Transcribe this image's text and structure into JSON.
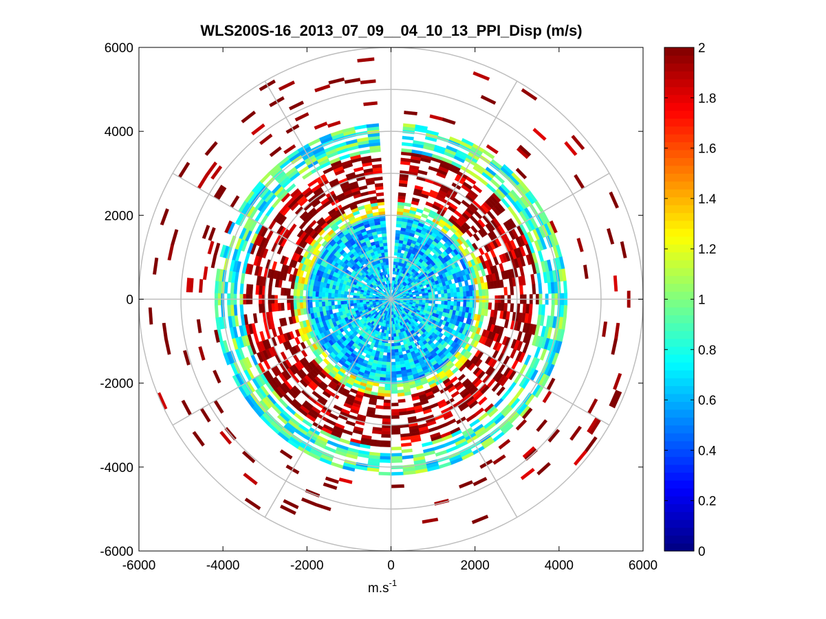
{
  "chart_data": {
    "type": "heatmap",
    "subtype": "polar-ppi",
    "title": "WLS200S-16_2013_07_09__04_10_13_PPI_Disp (m/s)",
    "xlabel": "m.s",
    "xlabel_sup": "-1",
    "ylabel": "",
    "xlim": [
      -6000,
      6000
    ],
    "ylim": [
      -6000,
      6000
    ],
    "xticks": [
      -6000,
      -4000,
      -2000,
      0,
      2000,
      4000,
      6000
    ],
    "yticks": [
      -6000,
      -4000,
      -2000,
      0,
      2000,
      4000,
      6000
    ],
    "xtick_labels": [
      "-6000",
      "-4000",
      "-2000",
      "0",
      "2000",
      "4000",
      "6000"
    ],
    "ytick_labels": [
      "-6000",
      "-4000",
      "-2000",
      "0",
      "2000",
      "4000",
      "6000"
    ],
    "polar_grid_radii": [
      1000,
      2000,
      3000,
      4000,
      5000,
      6000
    ],
    "polar_grid_spoke_angles_deg": [
      0,
      30,
      60,
      90,
      120,
      150,
      180,
      210,
      240,
      270,
      300,
      330
    ],
    "colorbar": {
      "colormap": "jet",
      "clim": [
        0,
        2
      ],
      "ticks": [
        0,
        0.2,
        0.4,
        0.6,
        0.8,
        1,
        1.2,
        1.4,
        1.6,
        1.8,
        2
      ],
      "tick_labels": [
        "0",
        "0.2",
        "0.4",
        "0.6",
        "0.8",
        "1",
        "1.2",
        "1.4",
        "1.6",
        "1.8",
        "2"
      ]
    },
    "data_description_zones": [
      {
        "range_m": [
          0,
          2000
        ],
        "typical_value": 0.65,
        "spread": 0.25
      },
      {
        "range_m": [
          2000,
          2300
        ],
        "typical_value": 1.1,
        "spread": 0.3
      },
      {
        "range_m": [
          2300,
          3500
        ],
        "typical_value": 2.0,
        "spread": 0.3
      },
      {
        "range_m": [
          3500,
          4200
        ],
        "typical_value": 0.85,
        "spread": 0.3
      },
      {
        "range_m": [
          4200,
          6000
        ],
        "typical_value": 2.0,
        "spread": 0.2
      }
    ],
    "gap_azimuth_deg": [
      -5,
      5
    ]
  }
}
